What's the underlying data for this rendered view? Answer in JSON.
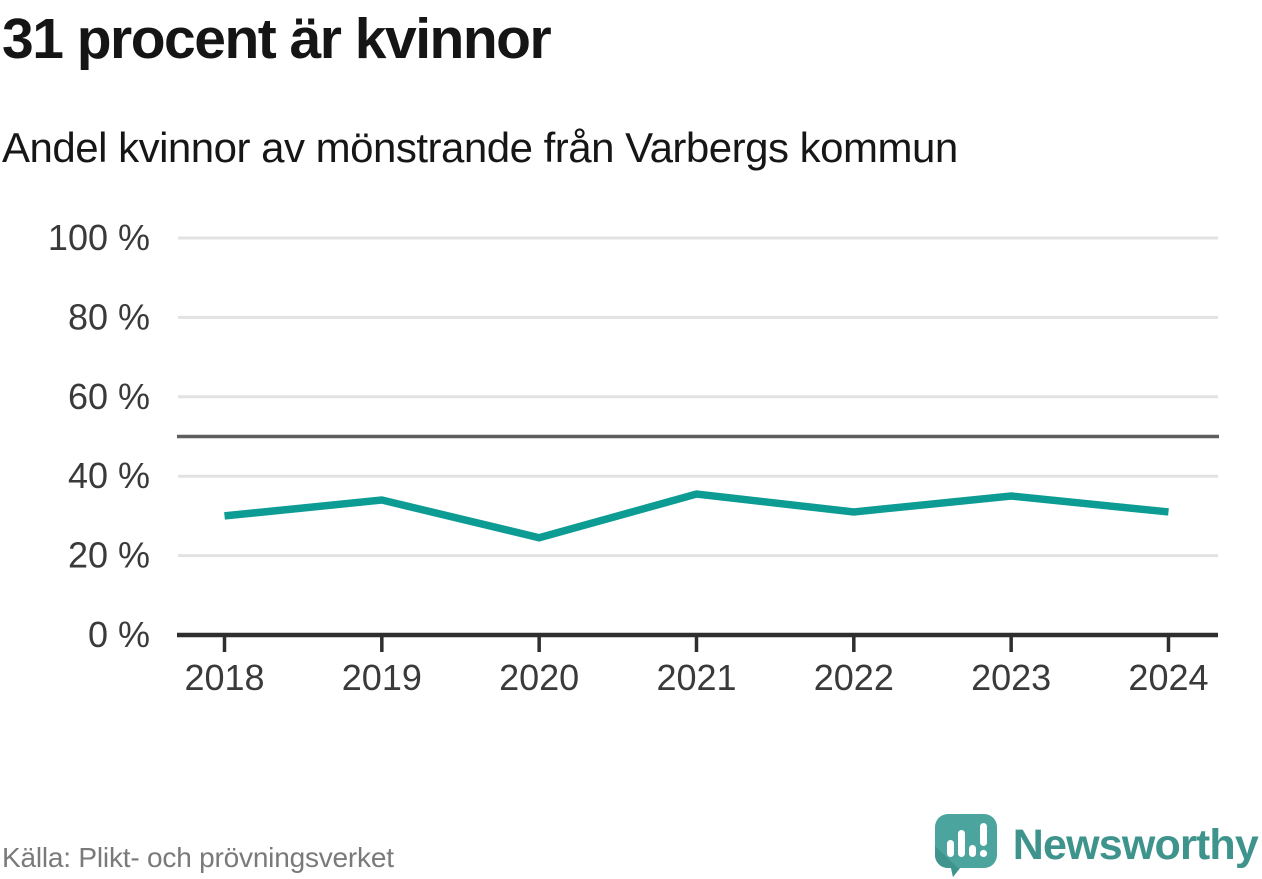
{
  "header": {
    "title": "31 procent är kvinnor",
    "subtitle": "Andel kvinnor av mönstrande från Varbergs kommun"
  },
  "footer": {
    "source": "Källa: Plikt- och prövningsverket",
    "brand": "Newsworthy"
  },
  "colors": {
    "line": "#0d9c94",
    "reference_line": "#5e5e5e",
    "gridline": "#e2e2e2",
    "axis": "#2e2e2e",
    "axis_text": "#3a3a3a",
    "logo_teal": "#4ba59e",
    "logo_teal_dark": "#3f948d",
    "brand_text": "#3e948c",
    "source_text": "#7a7a7a"
  },
  "chart_data": {
    "type": "line",
    "title": "31 procent är kvinnor",
    "subtitle": "Andel kvinnor av mönstrande från Varbergs kommun",
    "x": [
      2018,
      2019,
      2020,
      2021,
      2022,
      2023,
      2024
    ],
    "series": [
      {
        "name": "Andel kvinnor av mönstrande",
        "values": [
          30,
          34,
          24.5,
          35.5,
          31,
          35,
          31
        ]
      }
    ],
    "unit": "%",
    "xlabel": "",
    "ylabel": "",
    "ylim": [
      0,
      100
    ],
    "yticks": [
      0,
      20,
      40,
      60,
      80,
      100
    ],
    "ytick_labels": [
      "0 %",
      "20 %",
      "40 %",
      "60 %",
      "80 %",
      "100 %"
    ],
    "reference_line_y": 50,
    "grid": "horizontal",
    "legend": "none",
    "line_color": "#0d9c94"
  }
}
